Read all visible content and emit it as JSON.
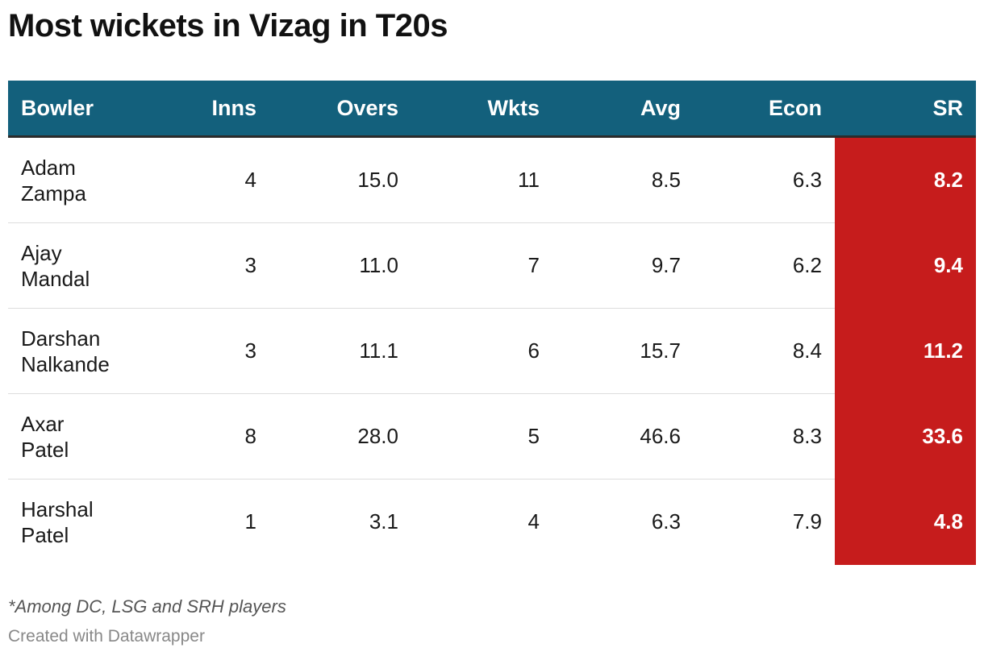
{
  "title": "Most wickets in Vizag in T20s",
  "chart_data": {
    "type": "table",
    "title": "Most wickets in Vizag in T20s",
    "columns": [
      "Bowler",
      "Inns",
      "Overs",
      "Wkts",
      "Avg",
      "Econ",
      "SR"
    ],
    "rows": [
      {
        "bowler_first": "Adam",
        "bowler_last": "Zampa",
        "inns": "4",
        "overs": "15.0",
        "wkts": "11",
        "avg": "8.5",
        "econ": "6.3",
        "sr": "8.2"
      },
      {
        "bowler_first": "Ajay",
        "bowler_last": "Mandal",
        "inns": "3",
        "overs": "11.0",
        "wkts": "7",
        "avg": "9.7",
        "econ": "6.2",
        "sr": "9.4"
      },
      {
        "bowler_first": "Darshan",
        "bowler_last": "Nalkande",
        "inns": "3",
        "overs": "11.1",
        "wkts": "6",
        "avg": "15.7",
        "econ": "8.4",
        "sr": "11.2"
      },
      {
        "bowler_first": "Axar",
        "bowler_last": "Patel",
        "inns": "8",
        "overs": "28.0",
        "wkts": "5",
        "avg": "46.6",
        "econ": "8.3",
        "sr": "33.6"
      },
      {
        "bowler_first": "Harshal",
        "bowler_last": "Patel",
        "inns": "1",
        "overs": "3.1",
        "wkts": "4",
        "avg": "6.3",
        "econ": "7.9",
        "sr": "4.8"
      }
    ],
    "header_color": "#13607c",
    "highlight_color": "#c61c1c"
  },
  "footnote": "*Among DC, LSG and SRH players",
  "credit": "Created with Datawrapper"
}
